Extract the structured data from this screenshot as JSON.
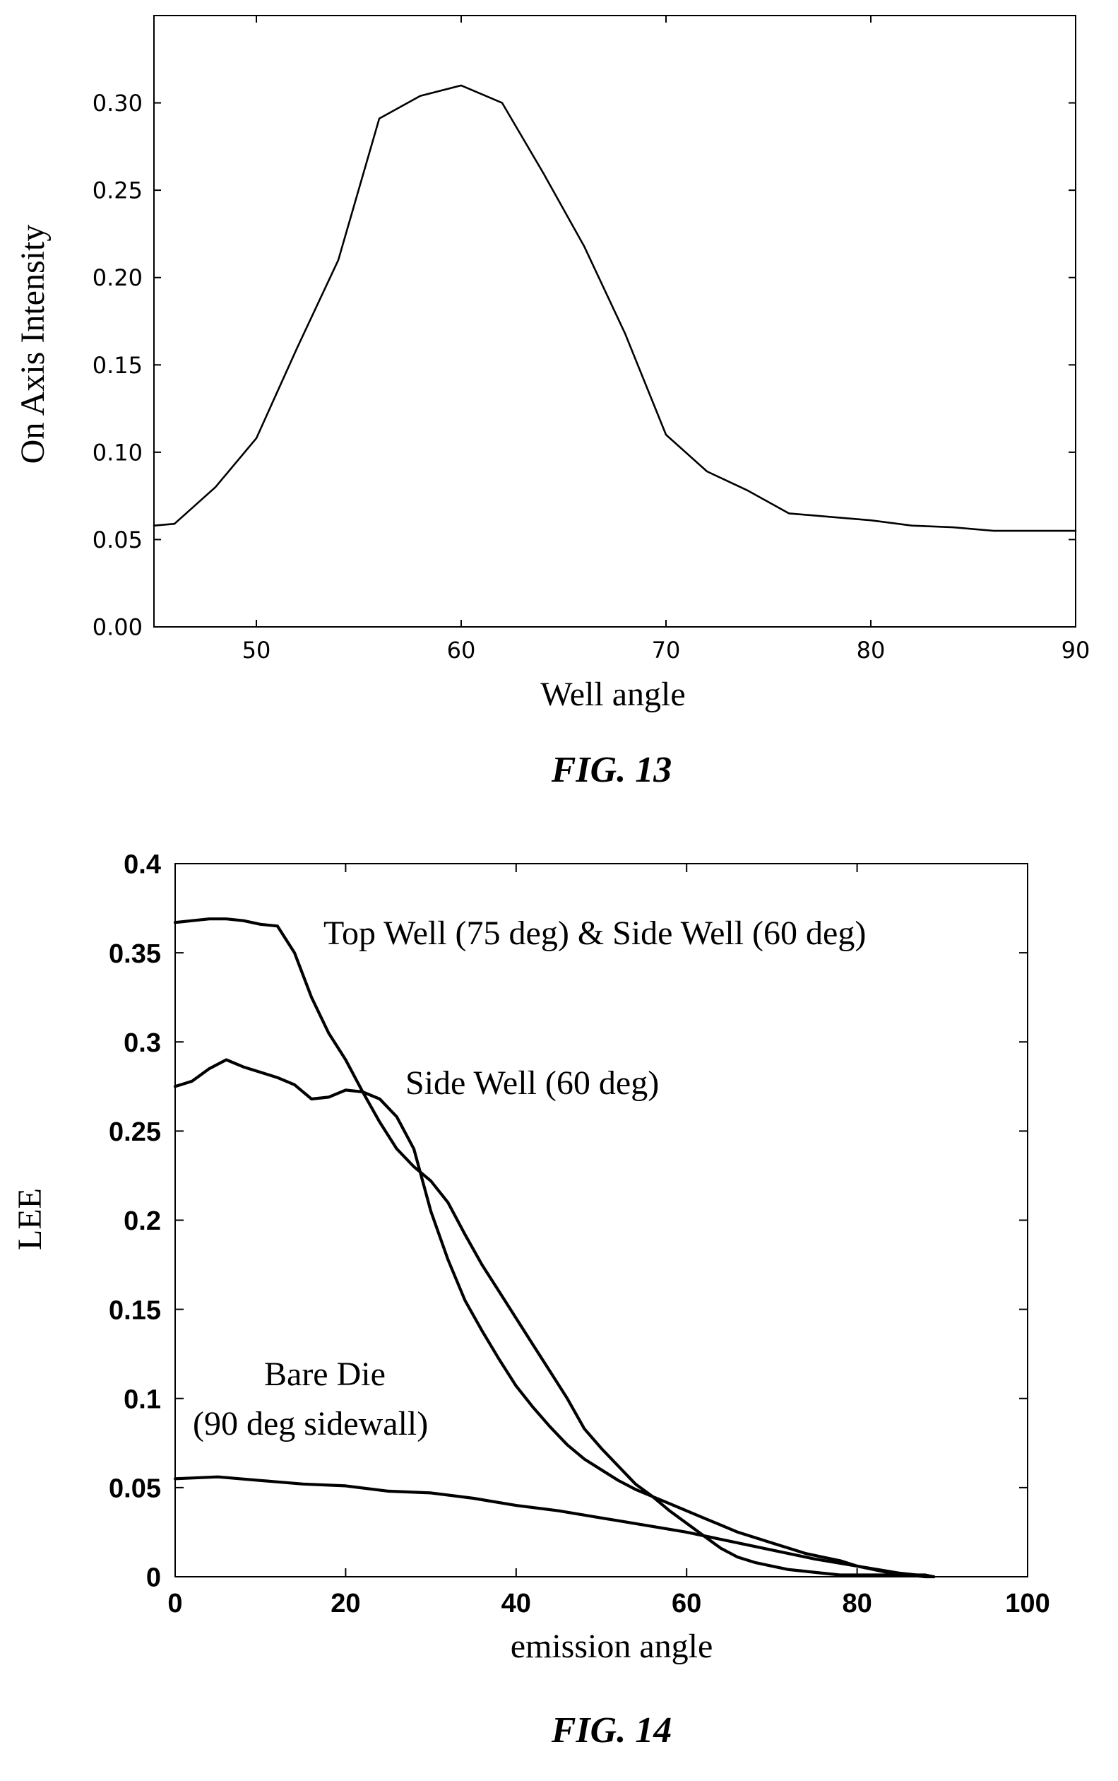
{
  "chart_data": [
    {
      "type": "line",
      "caption": "FIG. 13",
      "xlabel": "Well angle",
      "ylabel": "On Axis Intensity",
      "xlim": [
        45,
        90
      ],
      "ylim": [
        0.0,
        0.35
      ],
      "xticks": [
        "50",
        "60",
        "70",
        "80",
        "90"
      ],
      "yticks": [
        "0.00",
        "0.05",
        "0.10",
        "0.15",
        "0.20",
        "0.25",
        "0.30"
      ],
      "grid": false,
      "series": [
        {
          "x": [
            45,
            46,
            48,
            50,
            52,
            54,
            56,
            58,
            60,
            62,
            64,
            66,
            68,
            70,
            72,
            74,
            76,
            78,
            80,
            82,
            84,
            86,
            88,
            90
          ],
          "y": [
            0.058,
            0.059,
            0.08,
            0.108,
            0.16,
            0.21,
            0.291,
            0.304,
            0.31,
            0.3,
            0.26,
            0.218,
            0.168,
            0.11,
            0.089,
            0.078,
            0.065,
            0.063,
            0.061,
            0.058,
            0.057,
            0.055,
            0.055,
            0.055
          ]
        }
      ]
    },
    {
      "type": "line",
      "caption": "FIG. 14",
      "xlabel": "emission angle",
      "ylabel": "LEE",
      "xlim": [
        0,
        100
      ],
      "ylim": [
        0,
        0.4
      ],
      "xticks": [
        "0",
        "20",
        "40",
        "60",
        "80",
        "100"
      ],
      "yticks": [
        "0",
        "0.05",
        "0.1",
        "0.15",
        "0.2",
        "0.25",
        "0.3",
        "0.35",
        "0.4"
      ],
      "grid": false,
      "annotations": [
        {
          "text": "Top Well (75 deg) & Side Well (60 deg)"
        },
        {
          "text": "Side Well (60 deg)"
        },
        {
          "text": "Bare Die"
        },
        {
          "text": "(90 deg sidewall)"
        }
      ],
      "series": [
        {
          "x": [
            0,
            2,
            4,
            6,
            8,
            10,
            12,
            14,
            16,
            18,
            20,
            22,
            24,
            26,
            28,
            30,
            32,
            34,
            36,
            38,
            40,
            42,
            44,
            46,
            48,
            50,
            52,
            54,
            56,
            58,
            60,
            62,
            64,
            66,
            68,
            70,
            72,
            74,
            76,
            78,
            80,
            82,
            84,
            86,
            88,
            89
          ],
          "y": [
            0.367,
            0.368,
            0.369,
            0.369,
            0.368,
            0.366,
            0.365,
            0.35,
            0.325,
            0.305,
            0.29,
            0.272,
            0.255,
            0.24,
            0.23,
            0.222,
            0.21,
            0.192,
            0.175,
            0.16,
            0.145,
            0.13,
            0.115,
            0.1,
            0.083,
            0.072,
            0.062,
            0.052,
            0.045,
            0.037,
            0.03,
            0.023,
            0.016,
            0.011,
            0.008,
            0.006,
            0.004,
            0.003,
            0.002,
            0.001,
            0.001,
            0.001,
            0.001,
            0.001,
            0.001,
            0.0
          ]
        },
        {
          "x": [
            0,
            2,
            4,
            6,
            8,
            10,
            12,
            14,
            16,
            18,
            20,
            22,
            24,
            26,
            28,
            30,
            32,
            34,
            36,
            38,
            40,
            42,
            44,
            46,
            48,
            50,
            52,
            54,
            56,
            58,
            60,
            62,
            64,
            66,
            68,
            70,
            72,
            74,
            76,
            78,
            80,
            82,
            84,
            86,
            88,
            89
          ],
          "y": [
            0.275,
            0.278,
            0.285,
            0.29,
            0.286,
            0.283,
            0.28,
            0.276,
            0.268,
            0.269,
            0.273,
            0.272,
            0.268,
            0.258,
            0.24,
            0.205,
            0.178,
            0.155,
            0.138,
            0.122,
            0.107,
            0.095,
            0.084,
            0.074,
            0.066,
            0.06,
            0.054,
            0.049,
            0.045,
            0.041,
            0.037,
            0.033,
            0.029,
            0.025,
            0.022,
            0.019,
            0.016,
            0.013,
            0.011,
            0.009,
            0.006,
            0.004,
            0.002,
            0.001,
            0.0,
            0.0
          ]
        },
        {
          "x": [
            0,
            5,
            10,
            15,
            20,
            25,
            30,
            35,
            40,
            45,
            50,
            55,
            60,
            65,
            70,
            75,
            80,
            85,
            89
          ],
          "y": [
            0.055,
            0.056,
            0.054,
            0.052,
            0.051,
            0.048,
            0.047,
            0.044,
            0.04,
            0.037,
            0.033,
            0.029,
            0.025,
            0.02,
            0.015,
            0.01,
            0.006,
            0.002,
            0.0
          ]
        }
      ]
    }
  ]
}
